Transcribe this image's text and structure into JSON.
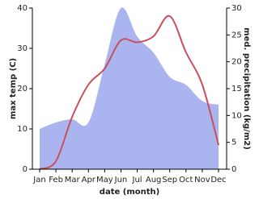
{
  "chart_data": {
    "type": "line_area",
    "x_label": "date (month)",
    "y_label": "max temp (C)",
    "y2_label": "med. precipitation (kg/m2)",
    "categories": [
      "Jan",
      "Feb",
      "Mar",
      "Apr",
      "May",
      "Jun",
      "Jul",
      "Aug",
      "Sep",
      "Oct",
      "Nov",
      "Dec"
    ],
    "ylim": [
      0,
      40
    ],
    "yticks": [
      0,
      10,
      20,
      30,
      40
    ],
    "y2lim": [
      0,
      30
    ],
    "y2ticks": [
      0,
      5,
      10,
      15,
      20,
      25,
      30
    ],
    "series": [
      {
        "name": "max temp",
        "color": "#c9505a",
        "values": [
          0,
          2,
          13,
          21,
          25,
          32,
          31.5,
          33,
          38,
          29,
          21,
          6
        ]
      },
      {
        "name": "med. precipitation",
        "color": "#aab4ee",
        "axis": "y2",
        "values": [
          7.5,
          8.7,
          9.3,
          8.7,
          19.5,
          30,
          24.7,
          21.7,
          17.2,
          15.7,
          12.7,
          12
        ]
      }
    ]
  }
}
